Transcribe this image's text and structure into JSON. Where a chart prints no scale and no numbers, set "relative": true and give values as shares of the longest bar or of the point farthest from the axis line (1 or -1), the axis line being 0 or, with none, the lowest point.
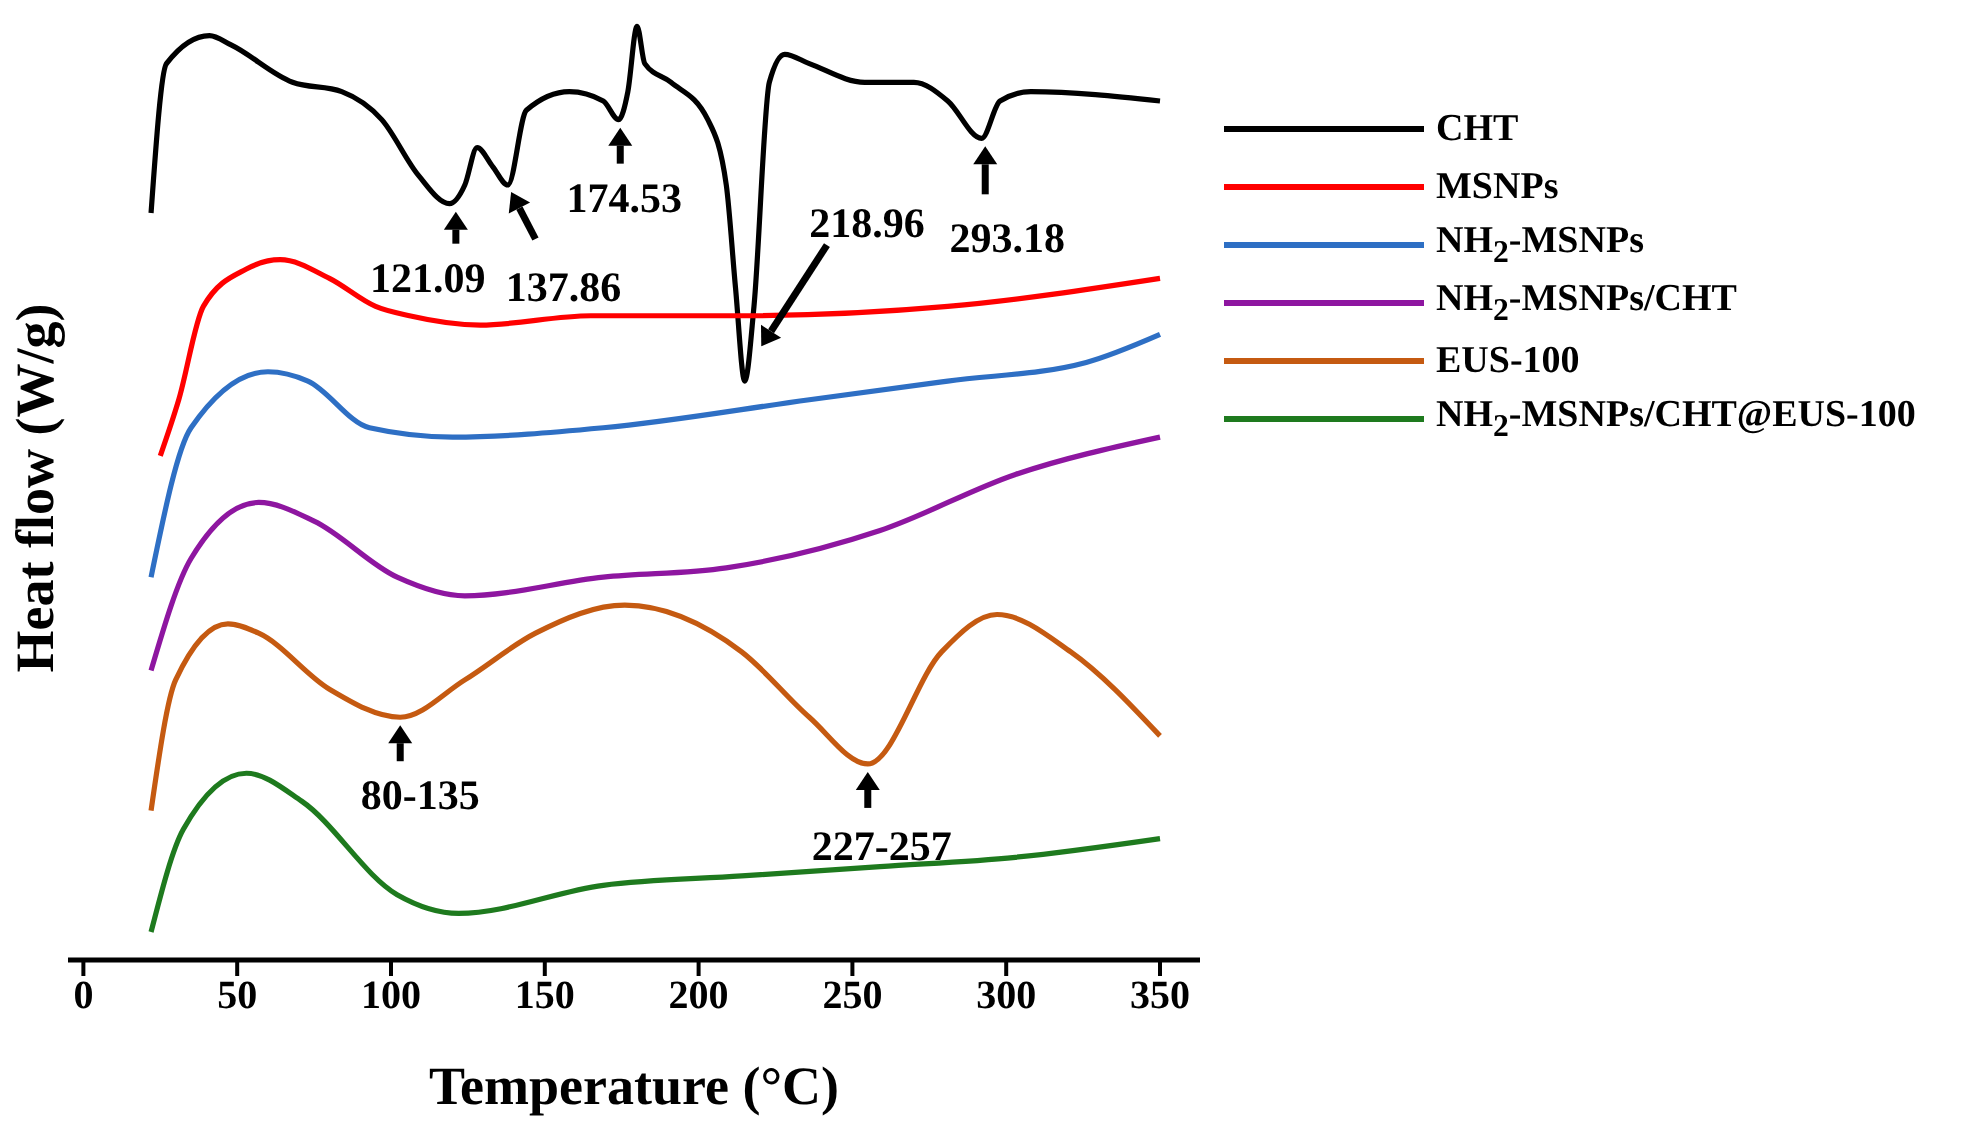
{
  "chart_data": {
    "type": "line",
    "relative": true,
    "xlabel": "Temperature (°C)",
    "ylabel": "Heat flow (W/g)",
    "xlim": [
      -5,
      363
    ],
    "xticks": [
      0,
      50,
      100,
      150,
      200,
      250,
      300,
      350
    ],
    "grid": false,
    "legend": "right",
    "marker": "none",
    "line_style": "solid",
    "series": [
      {
        "name": "CHT",
        "color": "#000000",
        "x": [
          22,
          27,
          41,
          48,
          68,
          84,
          97,
          109,
          119,
          124,
          128,
          133,
          138,
          144,
          158,
          169,
          174,
          177,
          180,
          182.5,
          191,
          203,
          209,
          212,
          215,
          218,
          223,
          228,
          236,
          254,
          270,
          281,
          292,
          298,
          308,
          350
        ],
        "values": [
          0.8,
          0.96,
          0.99,
          0.98,
          0.94,
          0.93,
          0.9,
          0.84,
          0.81,
          0.83,
          0.87,
          0.85,
          0.83,
          0.91,
          0.93,
          0.92,
          0.9,
          0.93,
          1,
          0.96,
          0.94,
          0.9,
          0.83,
          0.72,
          0.62,
          0.7,
          0.94,
          0.97,
          0.96,
          0.94,
          0.94,
          0.92,
          0.88,
          0.92,
          0.93,
          0.92
        ]
      },
      {
        "name": "MSNPs",
        "color": "#ff0000",
        "x": [
          25,
          31,
          39,
          53,
          64,
          80,
          95,
          106,
          129,
          165,
          214,
          281,
          350
        ],
        "values": [
          0.54,
          0.6,
          0.7,
          0.74,
          0.75,
          0.73,
          0.7,
          0.69,
          0.68,
          0.69,
          0.69,
          0.7,
          0.73
        ]
      },
      {
        "name": "NH$_{2}$-MSNPs",
        "color": "#2e6fc4",
        "x": [
          22,
          35,
          60,
          73,
          93,
          120,
          169,
          236,
          281,
          326,
          350
        ],
        "values": [
          0.41,
          0.57,
          0.63,
          0.62,
          0.57,
          0.56,
          0.57,
          0.6,
          0.62,
          0.64,
          0.67
        ]
      },
      {
        "name": "NH$_{2}$-MSNPs/CHT",
        "color": "#8e16a0",
        "x": [
          22,
          35,
          57,
          75,
          102,
          124,
          169,
          209,
          259,
          303,
          350
        ],
        "values": [
          0.31,
          0.43,
          0.49,
          0.47,
          0.41,
          0.39,
          0.41,
          0.42,
          0.46,
          0.52,
          0.56
        ]
      },
      {
        "name": "EUS-100",
        "color": "#c55a11",
        "x": [
          22,
          30,
          47,
          57,
          80,
          103,
          124,
          147,
          176,
          214,
          236,
          255,
          279,
          297,
          321,
          350
        ],
        "values": [
          0.16,
          0.3,
          0.36,
          0.35,
          0.29,
          0.26,
          0.3,
          0.35,
          0.38,
          0.33,
          0.26,
          0.21,
          0.33,
          0.37,
          0.33,
          0.24
        ]
      },
      {
        "name": "NH$_{2}$-MSNPs/CHT@EUS-100",
        "color": "#1e7a1e",
        "x": [
          22,
          32.5,
          53,
          71,
          102,
          122,
          169,
          214,
          259,
          303,
          350
        ],
        "values": [
          0.03,
          0.14,
          0.2,
          0.17,
          0.07,
          0.05,
          0.08,
          0.09,
          0.1,
          0.11,
          0.13
        ]
      }
    ],
    "annotations": [
      {
        "text": "121.09",
        "x": 121.09,
        "y": 0.81
      },
      {
        "text": "137.86",
        "x": 137.86,
        "y": 0.83
      },
      {
        "text": "174.53",
        "x": 174.53,
        "y": 0.9
      },
      {
        "text": "218.96",
        "x": 218.96,
        "y": 0.65
      },
      {
        "text": "293.18",
        "x": 293.18,
        "y": 0.88
      },
      {
        "text": "80-135",
        "x": 103,
        "y": 0.26
      },
      {
        "text": "227-257",
        "x": 255,
        "y": 0.21
      }
    ]
  }
}
